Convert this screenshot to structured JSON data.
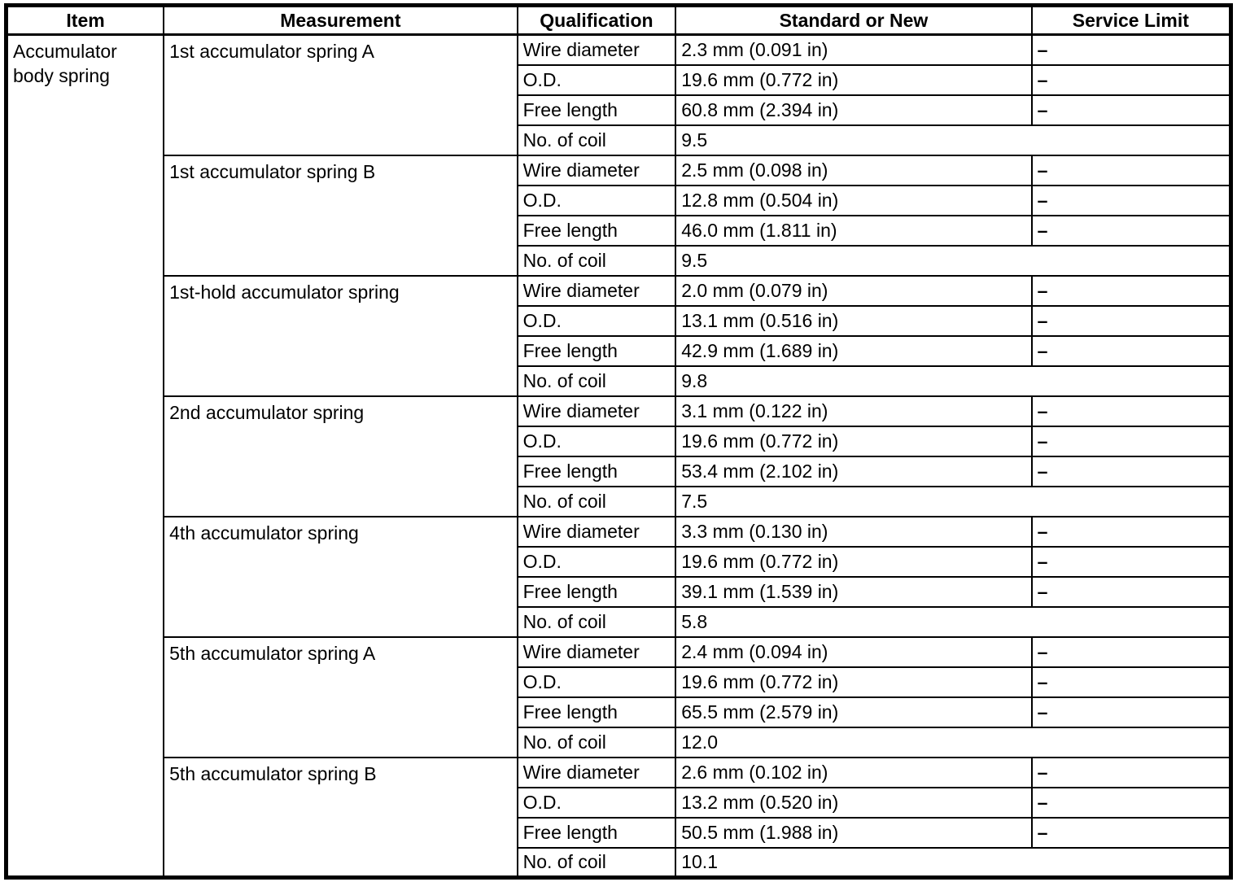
{
  "table": {
    "headers": [
      "Item",
      "Measurement",
      "Qualification",
      "Standard or New",
      "Service Limit"
    ],
    "item": "Accumulator body spring",
    "colors": {
      "border": "#000000",
      "text": "#000000",
      "background": "#ffffff"
    },
    "groups": [
      {
        "measurement": "1st accumulator spring A",
        "rows": [
          {
            "qualification": "Wire diameter",
            "standard": "2.3 mm (0.091 in)",
            "service_limit": "–"
          },
          {
            "qualification": "O.D.",
            "standard": "19.6 mm (0.772 in)",
            "service_limit": "–"
          },
          {
            "qualification": "Free length",
            "standard": "60.8 mm (2.394 in)",
            "service_limit": "–"
          },
          {
            "qualification": "No. of coil",
            "standard": "9.5",
            "service_limit": ""
          }
        ]
      },
      {
        "measurement": "1st accumulator spring B",
        "rows": [
          {
            "qualification": "Wire diameter",
            "standard": "2.5 mm (0.098 in)",
            "service_limit": "–"
          },
          {
            "qualification": "O.D.",
            "standard": "12.8 mm (0.504 in)",
            "service_limit": "–"
          },
          {
            "qualification": "Free length",
            "standard": "46.0 mm (1.811 in)",
            "service_limit": "–"
          },
          {
            "qualification": "No. of coil",
            "standard": "9.5",
            "service_limit": ""
          }
        ]
      },
      {
        "measurement": "1st-hold accumulator spring",
        "rows": [
          {
            "qualification": "Wire diameter",
            "standard": "2.0 mm (0.079 in)",
            "service_limit": "–"
          },
          {
            "qualification": "O.D.",
            "standard": "13.1 mm (0.516 in)",
            "service_limit": "–"
          },
          {
            "qualification": "Free length",
            "standard": "42.9 mm (1.689 in)",
            "service_limit": "–"
          },
          {
            "qualification": "No. of coil",
            "standard": "9.8",
            "service_limit": ""
          }
        ]
      },
      {
        "measurement": "2nd accumulator spring",
        "rows": [
          {
            "qualification": "Wire diameter",
            "standard": "3.1 mm (0.122 in)",
            "service_limit": "–"
          },
          {
            "qualification": "O.D.",
            "standard": "19.6 mm (0.772 in)",
            "service_limit": "–"
          },
          {
            "qualification": "Free length",
            "standard": "53.4 mm (2.102 in)",
            "service_limit": "–"
          },
          {
            "qualification": "No. of coil",
            "standard": "7.5",
            "service_limit": ""
          }
        ]
      },
      {
        "measurement": "4th accumulator spring",
        "rows": [
          {
            "qualification": "Wire diameter",
            "standard": "3.3 mm (0.130 in)",
            "service_limit": "–"
          },
          {
            "qualification": "O.D.",
            "standard": "19.6 mm (0.772 in)",
            "service_limit": "–"
          },
          {
            "qualification": "Free length",
            "standard": "39.1 mm (1.539 in)",
            "service_limit": "–"
          },
          {
            "qualification": "No. of coil",
            "standard": "5.8",
            "service_limit": ""
          }
        ]
      },
      {
        "measurement": "5th accumulator spring A",
        "rows": [
          {
            "qualification": "Wire diameter",
            "standard": "2.4 mm (0.094 in)",
            "service_limit": "–"
          },
          {
            "qualification": "O.D.",
            "standard": "19.6 mm (0.772 in)",
            "service_limit": "–"
          },
          {
            "qualification": "Free length",
            "standard": "65.5 mm (2.579 in)",
            "service_limit": "–"
          },
          {
            "qualification": "No. of coil",
            "standard": "12.0",
            "service_limit": ""
          }
        ]
      },
      {
        "measurement": "5th accumulator spring B",
        "rows": [
          {
            "qualification": "Wire diameter",
            "standard": "2.6 mm (0.102 in)",
            "service_limit": "–"
          },
          {
            "qualification": "O.D.",
            "standard": "13.2 mm (0.520 in)",
            "service_limit": "–"
          },
          {
            "qualification": "Free length",
            "standard": "50.5 mm (1.988 in)",
            "service_limit": "–"
          },
          {
            "qualification": "No. of coil",
            "standard": "10.1",
            "service_limit": ""
          }
        ]
      }
    ]
  }
}
